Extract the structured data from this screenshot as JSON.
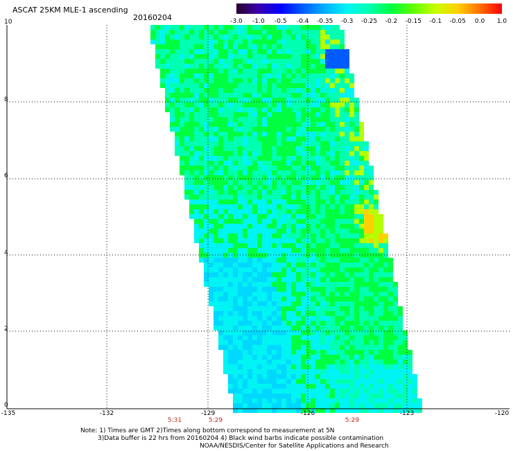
{
  "header": {
    "title": "ASCAT 25KM MLE-1 ascending",
    "date": "20160204"
  },
  "colorbar": {
    "labels": [
      "-3.0",
      "-1.0",
      "-0.5",
      "-0.4",
      "-0.35",
      "-0.3",
      "-0.25",
      "-0.2",
      "-0.15",
      "-0.1",
      "-0.05",
      "0.0",
      "1.0"
    ],
    "colors": [
      "#2a002a",
      "#3b00b0",
      "#0000ff",
      "#005cff",
      "#00b0ff",
      "#00f4f4",
      "#00ffb0",
      "#00ff40",
      "#60ff00",
      "#c8ff00",
      "#ffd000",
      "#ff7000",
      "#ff0000"
    ]
  },
  "y_axis": {
    "labels": [
      "10",
      "8",
      "6",
      "4",
      "2",
      "0"
    ]
  },
  "x_axis": {
    "labels": [
      "-135",
      "-132",
      "-129",
      "-126",
      "-123",
      "-120"
    ]
  },
  "times": [
    "5:31",
    "5:29",
    "5:29"
  ],
  "notes": {
    "line1": "Note: 1) Times are GMT 2)Times along bottom correspond to measurement at 5N",
    "line2": "3)Data buffer is 22 hrs from 20160204 4) Black wind barbs indicate possible contamination",
    "line3": "NOAA/NESDIS/Center for Satellite Applications and Research"
  },
  "map": {
    "lat_range": [
      0,
      10
    ],
    "lon_range": [
      -135,
      -120
    ],
    "grid": "dotted",
    "swath_colors": {
      "green": "#00ff40",
      "mint": "#00ffb0",
      "cyan": "#00f4f4",
      "light_blue": "#00d8ff",
      "yellow_green": "#b4ff00",
      "yellow": "#ffd000",
      "blue": "#005cff"
    }
  }
}
